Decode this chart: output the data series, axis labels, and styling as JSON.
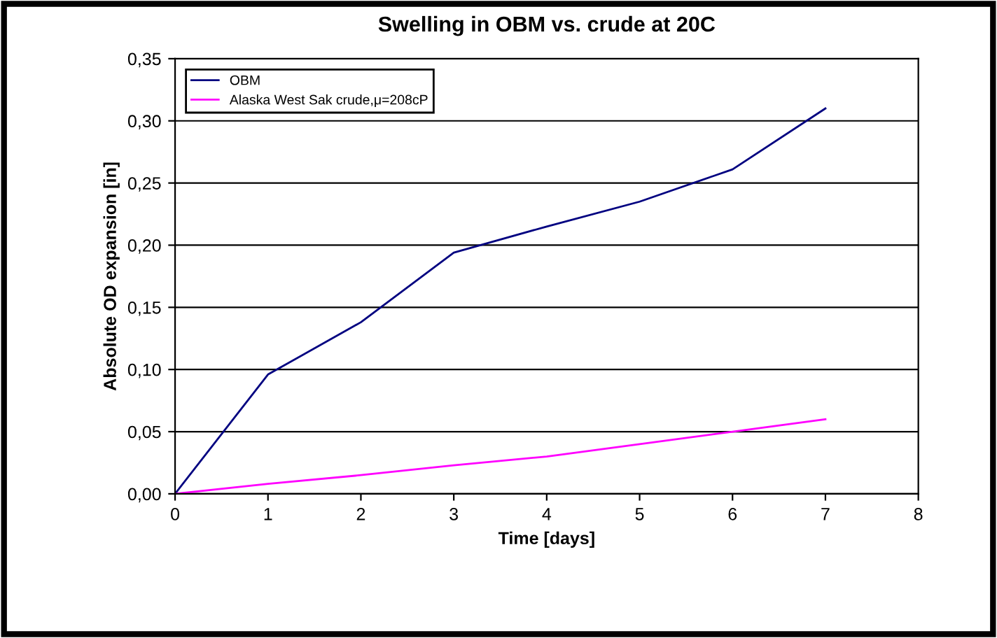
{
  "chart_data": {
    "type": "line",
    "title": "Swelling in OBM vs. crude at 20C",
    "xlabel": "Time [days]",
    "ylabel": "Absolute OD expansion [in]",
    "x": [
      0,
      1,
      2,
      3,
      4,
      5,
      6,
      7
    ],
    "series": [
      {
        "name": "OBM",
        "color": "#000080",
        "values": [
          0,
          0.096,
          0.138,
          0.194,
          0.215,
          0.235,
          0.261,
          0.31
        ]
      },
      {
        "name": "Alaska West Sak crude,μ=208cP",
        "color": "#ff00ff",
        "values": [
          0,
          0.008,
          0.015,
          0.023,
          0.03,
          0.04,
          0.05,
          0.06
        ]
      }
    ],
    "xlim": [
      0,
      8
    ],
    "xticks": [
      0,
      1,
      2,
      3,
      4,
      5,
      6,
      7,
      8
    ],
    "ylim": [
      0,
      0.35
    ],
    "yticks": [
      {
        "value": 0,
        "label": "0,00"
      },
      {
        "value": 0.05,
        "label": "0,05"
      },
      {
        "value": 0.1,
        "label": "0,10"
      },
      {
        "value": 0.15,
        "label": "0,15"
      },
      {
        "value": 0.2,
        "label": "0,20"
      },
      {
        "value": 0.25,
        "label": "0,25"
      },
      {
        "value": 0.3,
        "label": "0,30"
      },
      {
        "value": 0.35,
        "label": "0,35"
      }
    ],
    "grid": "y",
    "legend": "top left",
    "marker": "none",
    "line_style": "solid"
  }
}
